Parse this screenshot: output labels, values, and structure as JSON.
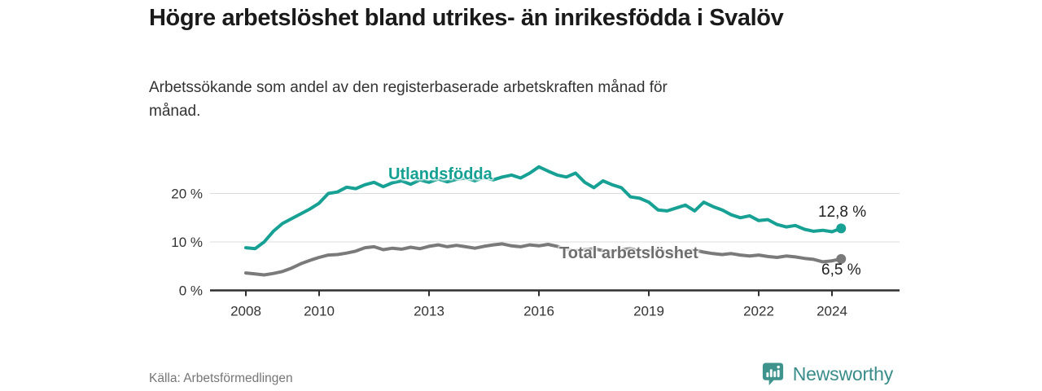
{
  "header": {
    "title": "Högre arbetslöshet bland utrikes- än inrikesfödda i Svalöv",
    "subtitle": "Arbetssökande som andel av den registerbaserade arbetskraften månad för månad."
  },
  "chart_data": {
    "type": "line",
    "title": "Högre arbetslöshet bland utrikes- än inrikesfödda i Svalöv",
    "unit": "%",
    "x_is": "year (monthly series shown, sampled quarterly)",
    "x": [
      2008,
      2008.25,
      2008.5,
      2008.75,
      2009,
      2009.25,
      2009.5,
      2009.75,
      2010,
      2010.25,
      2010.5,
      2010.75,
      2011,
      2011.25,
      2011.5,
      2011.75,
      2012,
      2012.25,
      2012.5,
      2012.75,
      2013,
      2013.25,
      2013.5,
      2013.75,
      2014,
      2014.25,
      2014.5,
      2014.75,
      2015,
      2015.25,
      2015.5,
      2015.75,
      2016,
      2016.25,
      2016.5,
      2016.75,
      2017,
      2017.25,
      2017.5,
      2017.75,
      2018,
      2018.25,
      2018.5,
      2018.75,
      2019,
      2019.25,
      2019.5,
      2019.75,
      2020,
      2020.25,
      2020.5,
      2020.75,
      2021,
      2021.25,
      2021.5,
      2021.75,
      2022,
      2022.25,
      2022.5,
      2022.75,
      2023,
      2023.25,
      2023.5,
      2023.75,
      2024,
      2024.25
    ],
    "series": [
      {
        "name": "Utlandsfödda",
        "color": "#17a094",
        "end_label": "12,8 %",
        "end_value": 12.8,
        "values": [
          8.8,
          8.6,
          10.0,
          12.2,
          13.8,
          14.8,
          15.8,
          16.8,
          18.0,
          20.0,
          20.3,
          21.3,
          21.0,
          21.8,
          22.3,
          21.4,
          22.2,
          22.6,
          21.9,
          22.8,
          22.3,
          23.0,
          22.4,
          22.9,
          23.2,
          22.6,
          23.3,
          22.8,
          23.4,
          23.8,
          23.2,
          24.2,
          25.5,
          24.6,
          23.8,
          23.4,
          24.2,
          22.3,
          21.2,
          22.6,
          21.8,
          21.2,
          19.3,
          19.0,
          18.2,
          16.6,
          16.4,
          17.0,
          17.6,
          16.4,
          18.2,
          17.3,
          16.6,
          15.6,
          15.0,
          15.4,
          14.4,
          14.6,
          13.6,
          13.1,
          13.4,
          12.6,
          12.2,
          12.4,
          12.1,
          12.8
        ]
      },
      {
        "name": "Total arbetslöshet",
        "color": "#7a7a7a",
        "end_label": "6,5 %",
        "end_value": 6.5,
        "values": [
          3.6,
          3.4,
          3.2,
          3.5,
          3.9,
          4.6,
          5.5,
          6.2,
          6.8,
          7.3,
          7.4,
          7.7,
          8.1,
          8.8,
          9.0,
          8.4,
          8.7,
          8.5,
          8.9,
          8.6,
          9.1,
          9.4,
          9.0,
          9.3,
          9.0,
          8.7,
          9.1,
          9.4,
          9.6,
          9.2,
          9.0,
          9.4,
          9.2,
          9.5,
          9.1,
          8.5,
          8.2,
          8.4,
          8.6,
          8.2,
          8.0,
          8.4,
          8.6,
          8.2,
          8.1,
          8.3,
          7.9,
          7.7,
          8.0,
          8.3,
          7.9,
          7.6,
          7.4,
          7.6,
          7.3,
          7.1,
          7.3,
          7.0,
          6.8,
          7.1,
          6.9,
          6.6,
          6.4,
          5.9,
          6.1,
          6.5
        ]
      }
    ],
    "axes": {
      "x_ticks": [
        2008,
        2010,
        2013,
        2016,
        2019,
        2022,
        2024
      ],
      "y_ticks": [
        {
          "value": 0,
          "label": "0 %"
        },
        {
          "value": 10,
          "label": "10 %"
        },
        {
          "value": 20,
          "label": "20 %"
        }
      ],
      "ylim": [
        0,
        27
      ],
      "xlim": [
        2007,
        2025.8
      ],
      "grid": "horizontal"
    },
    "legend_position": "labels-on-lines"
  },
  "colors": {
    "accent_teal": "#17a094",
    "series_gray": "#7a7a7a",
    "gridline": "#dcdcdc",
    "axis": "#2f2f2f",
    "text_dark": "#1a1a1a",
    "text_muted": "#767676",
    "logo_teal": "#3e948c",
    "logo_text": "#3a8c8a"
  },
  "footer": {
    "source": "Källa: Arbetsförmedlingen",
    "logo_text": "Newsworthy"
  }
}
